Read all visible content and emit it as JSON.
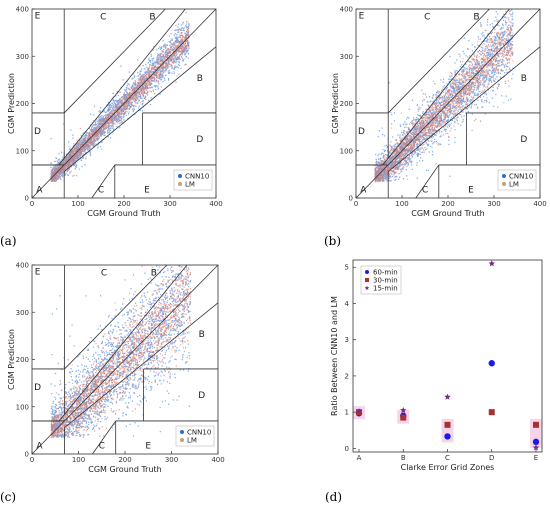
{
  "colors": {
    "cnn10": "#1f6fe0",
    "lm": "#e06040",
    "lm_legend": "#c8a070",
    "legend60": "#1a1aee",
    "legend30": "#a83232",
    "legend15": "#7a2a8a",
    "highlight": "#f5d0e8"
  },
  "chart_data": [
    {
      "type": "scatter",
      "panel_label": "(a)",
      "xlabel": "CGM Ground Truth",
      "ylabel": "CGM Prediction",
      "xlim": [
        0,
        400
      ],
      "ylim": [
        0,
        400
      ],
      "xticks": [
        "0",
        "100",
        "200",
        "300",
        "400"
      ],
      "yticks": [
        "0",
        "100",
        "200",
        "300",
        "400"
      ],
      "grid": "Clarke error grid",
      "legend": [
        "CNN10",
        "LM"
      ],
      "legend_position": "bottom-right",
      "zones": [
        "E",
        "C",
        "B",
        "B",
        "D",
        "D",
        "A",
        "C",
        "E"
      ],
      "spread": {
        "cnn10": 12,
        "lm": 8
      }
    },
    {
      "type": "scatter",
      "panel_label": "(b)",
      "xlabel": "CGM Ground Truth",
      "ylabel": "CGM Prediction",
      "xlim": [
        0,
        400
      ],
      "ylim": [
        0,
        400
      ],
      "xticks": [
        "0",
        "100",
        "200",
        "300",
        "400"
      ],
      "yticks": [
        "0",
        "100",
        "200",
        "300",
        "400"
      ],
      "grid": "Clarke error grid",
      "legend": [
        "CNN10",
        "LM"
      ],
      "legend_position": "bottom-right",
      "zones": [
        "E",
        "C",
        "B",
        "B",
        "D",
        "D",
        "A",
        "C",
        "E"
      ],
      "spread": {
        "cnn10": 22,
        "lm": 15
      }
    },
    {
      "type": "scatter",
      "panel_label": "(c)",
      "xlabel": "CGM Ground Truth",
      "ylabel": "CGM Prediction",
      "xlim": [
        0,
        400
      ],
      "ylim": [
        0,
        400
      ],
      "xticks": [
        "0",
        "100",
        "200",
        "300",
        "400"
      ],
      "yticks": [
        "0",
        "100",
        "200",
        "300",
        "400"
      ],
      "grid": "Clarke error grid",
      "legend": [
        "CNN10",
        "LM"
      ],
      "legend_position": "bottom-right",
      "zones": [
        "E",
        "C",
        "B",
        "B",
        "D",
        "D",
        "A",
        "C",
        "E"
      ],
      "spread": {
        "cnn10": 40,
        "lm": 26
      }
    },
    {
      "type": "scatter",
      "panel_label": "(d)",
      "xlabel": "Clarke Error Grid Zones",
      "ylabel": "Ratio Between CNN10 and LM",
      "categories": [
        "A",
        "B",
        "C",
        "D",
        "E"
      ],
      "ylim": [
        -0.1,
        5.2
      ],
      "yticks": [
        "0",
        "1",
        "2",
        "3",
        "4",
        "5"
      ],
      "legend_position": "top-left",
      "series": [
        {
          "name": "60-min",
          "marker": "circle",
          "values": [
            0.97,
            0.9,
            0.33,
            2.35,
            0.18
          ]
        },
        {
          "name": "30-min",
          "marker": "square",
          "values": [
            1.0,
            0.85,
            0.65,
            1.0,
            0.65
          ]
        },
        {
          "name": "15-min",
          "marker": "star",
          "values": [
            1.02,
            1.05,
            1.42,
            5.1,
            0.02
          ]
        }
      ]
    }
  ]
}
